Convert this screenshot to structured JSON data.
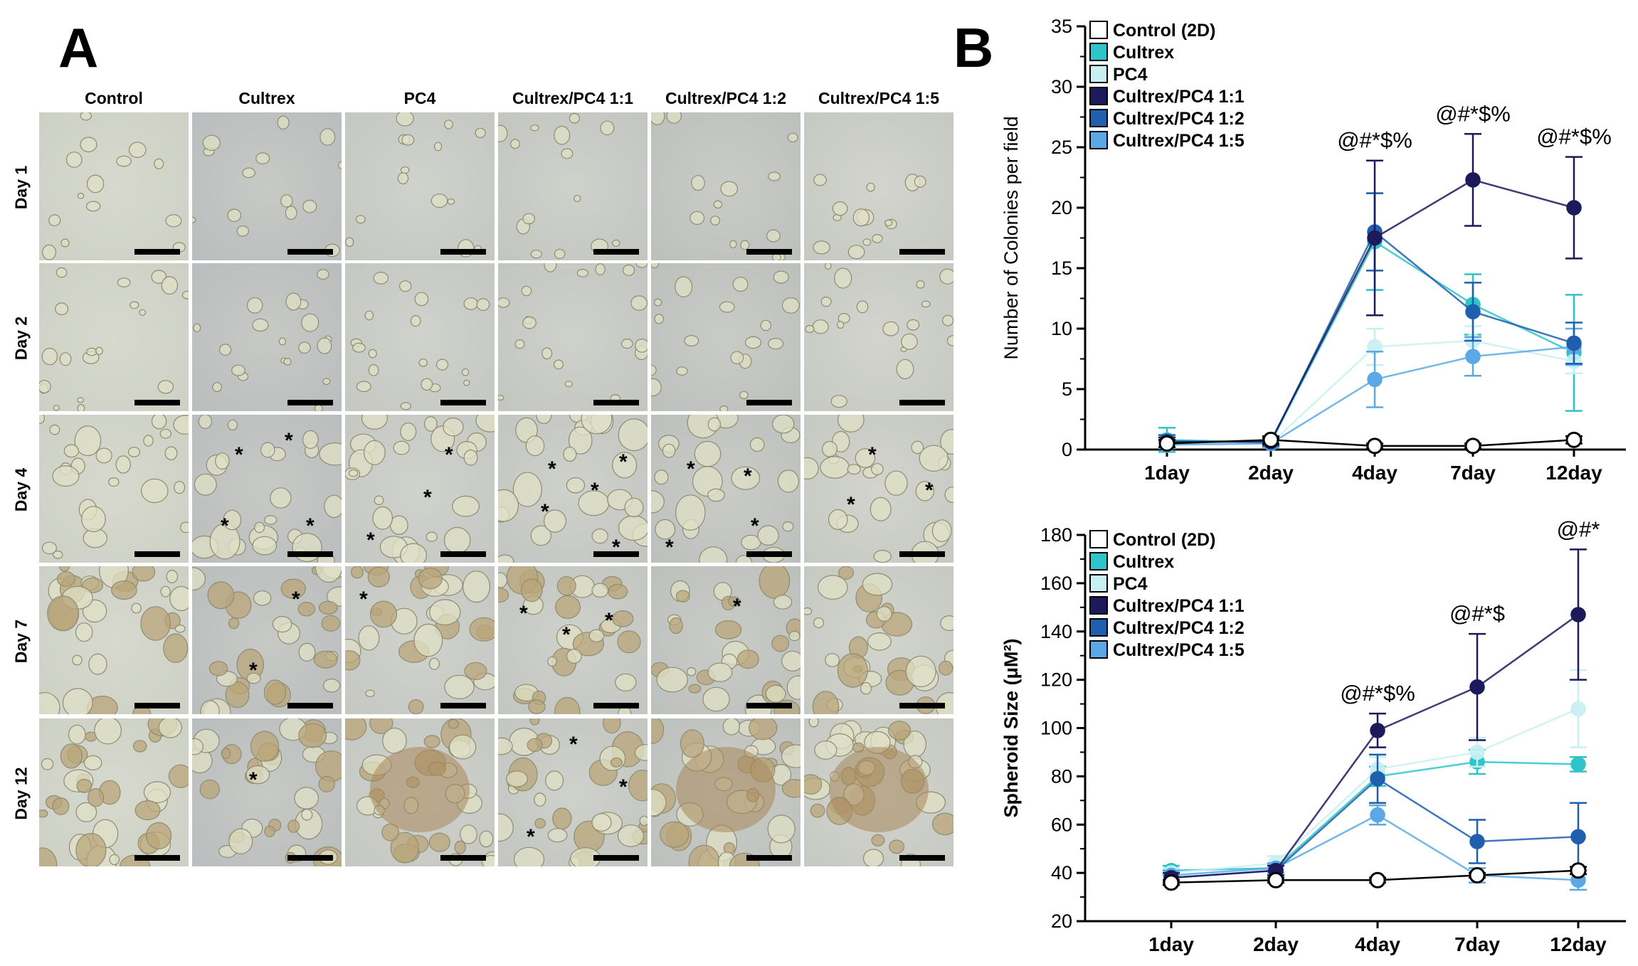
{
  "panels": {
    "a_label": "A",
    "b_label": "B"
  },
  "micrographs": {
    "columns": [
      "Control",
      "Cultrex",
      "PC4",
      "Cultrex/PC4 1:1",
      "Cultrex/PC4 1:2",
      "Cultrex/PC4 1:5"
    ],
    "rows": [
      "Day 1",
      "Day 2",
      "Day 4",
      "Day 7",
      "Day 12"
    ],
    "asterisk": "*"
  },
  "chart_data": [
    {
      "type": "line",
      "ylabel": "Number of Colonies per field",
      "xlabel": "",
      "categories": [
        "1day",
        "2day",
        "4day",
        "7day",
        "12day"
      ],
      "ylim": [
        0,
        35
      ],
      "yticks": [
        0,
        5,
        10,
        15,
        20,
        25,
        30,
        35
      ],
      "legend_position": "top-left",
      "annotations": [
        {
          "x": "4day",
          "text": "@#*$%"
        },
        {
          "x": "7day",
          "text": "@#*$%"
        },
        {
          "x": "12day",
          "text": "@#*$%"
        }
      ],
      "series": [
        {
          "name": "Control (2D)",
          "color": "#ffffff",
          "values": [
            0.5,
            0.8,
            0.3,
            0.3,
            0.8
          ],
          "err": [
            0.3,
            0.3,
            0.2,
            0.2,
            0.3
          ]
        },
        {
          "name": "Cultrex",
          "color": "#2ec4c9",
          "values": [
            0.8,
            0.6,
            17.2,
            12.0,
            8.0
          ],
          "err": [
            1.0,
            0.4,
            4.0,
            2.5,
            4.8
          ]
        },
        {
          "name": "PC4",
          "color": "#c8f0f2",
          "values": [
            0.5,
            0.5,
            8.5,
            9.0,
            7.3
          ],
          "err": [
            0.4,
            0.3,
            1.5,
            1.2,
            1.0
          ]
        },
        {
          "name": "Cultrex/PC4 1:1",
          "color": "#1c1a5a",
          "values": [
            0.6,
            0.7,
            17.5,
            22.3,
            20.0
          ],
          "err": [
            0.4,
            0.3,
            6.4,
            3.8,
            4.2
          ]
        },
        {
          "name": "Cultrex/PC4 1:2",
          "color": "#1f5fae",
          "values": [
            0.7,
            0.6,
            18.0,
            11.4,
            8.8
          ],
          "err": [
            0.5,
            0.3,
            3.2,
            2.4,
            1.7
          ]
        },
        {
          "name": "Cultrex/PC4 1:5",
          "color": "#5aa9e6",
          "values": [
            0.4,
            0.5,
            5.8,
            7.7,
            8.5
          ],
          "err": [
            0.3,
            0.3,
            2.3,
            1.6,
            1.5
          ]
        }
      ]
    },
    {
      "type": "line",
      "ylabel": "Spheroid Size (μM²)",
      "xlabel": "",
      "categories": [
        "1day",
        "2day",
        "4day",
        "7day",
        "12day"
      ],
      "ylim": [
        20,
        180
      ],
      "yticks": [
        20,
        40,
        60,
        80,
        100,
        120,
        140,
        160,
        180
      ],
      "legend_position": "top-left",
      "annotations": [
        {
          "x": "4day",
          "text": "@#*$%"
        },
        {
          "x": "7day",
          "text": "@#*$"
        },
        {
          "x": "12day",
          "text": "@#*"
        }
      ],
      "series": [
        {
          "name": "Control (2D)",
          "color": "#ffffff",
          "values": [
            36,
            37,
            37,
            39,
            41
          ],
          "err": [
            1,
            1,
            1,
            1,
            1.5
          ]
        },
        {
          "name": "Cultrex",
          "color": "#2ec4c9",
          "values": [
            41,
            42,
            80,
            86,
            85
          ],
          "err": [
            2,
            2,
            4,
            5,
            3
          ]
        },
        {
          "name": "PC4",
          "color": "#c8f0f2",
          "values": [
            40,
            44,
            83,
            90,
            108
          ],
          "err": [
            2,
            3,
            5,
            6,
            16
          ]
        },
        {
          "name": "Cultrex/PC4 1:1",
          "color": "#1c1a5a",
          "values": [
            38,
            41,
            99,
            117,
            147
          ],
          "err": [
            2,
            2,
            7,
            22,
            27
          ]
        },
        {
          "name": "Cultrex/PC4 1:2",
          "color": "#1f5fae",
          "values": [
            38,
            41,
            79,
            53,
            55
          ],
          "err": [
            2,
            2,
            10,
            9,
            14
          ]
        },
        {
          "name": "Cultrex/PC4 1:5",
          "color": "#5aa9e6",
          "values": [
            39,
            42,
            64,
            39,
            37
          ],
          "err": [
            2,
            2,
            4,
            3,
            4
          ]
        }
      ]
    }
  ]
}
